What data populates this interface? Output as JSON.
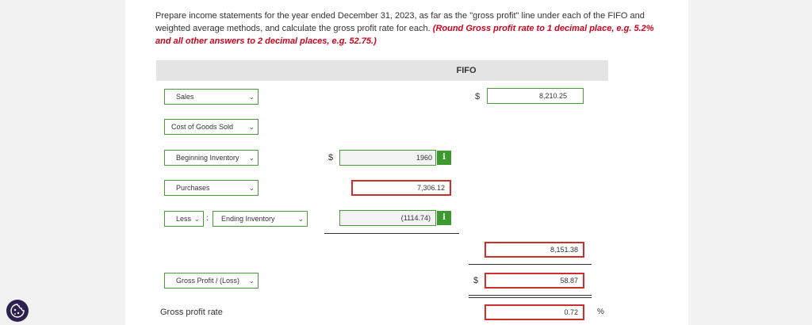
{
  "instructions": {
    "text": "Prepare income statements for the year ended December 31, 2023, as far as the \"gross profit\" line under each of the FIFO and weighted average methods, and calculate the gross profit rate for each.",
    "note": "(Round Gross profit rate to 1 decimal place, e.g. 5.2% and all other answers to 2 decimal places, e.g. 52.75.)"
  },
  "table": {
    "column_header": "FIFO"
  },
  "rows": {
    "sales": {
      "label": "Sales",
      "currency": "$",
      "value": "8,210.25"
    },
    "cogs": {
      "label": "Cost of Goods Sold"
    },
    "beginning": {
      "label": "Beginning Inventory",
      "currency": "$",
      "value": "1960",
      "info": "i"
    },
    "purchases": {
      "label": "Purchases",
      "value": "7,306.12"
    },
    "ending": {
      "modifier": "Less",
      "colon": ":",
      "label": "Ending Inventory",
      "value": "(1114.74)",
      "info": "i"
    },
    "cogs_total": {
      "value": "8,151.38"
    },
    "gross_profit": {
      "label": "Gross Profit / (Loss)",
      "currency": "$",
      "value": "58.87"
    },
    "rate": {
      "label": "Gross profit rate",
      "value": "0.72",
      "unit": "%"
    }
  },
  "icons": {
    "chevron": "chevron-down-icon",
    "info": "info-icon",
    "cookie": "cookie-icon"
  },
  "colors": {
    "accent_green": "#3c9a2f",
    "error_red": "#c9302c",
    "note_red": "#d0021b",
    "cookie_bg": "#2b2250"
  }
}
